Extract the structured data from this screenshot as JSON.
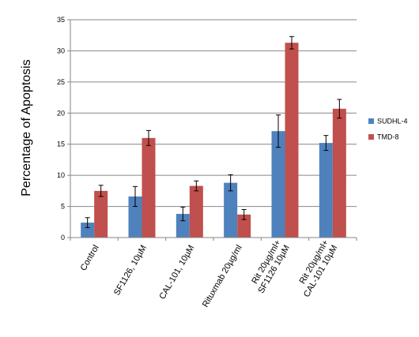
{
  "chart_data": {
    "type": "bar",
    "title": "",
    "xlabel": "",
    "ylabel": "Percentage of Apoptosis",
    "ylim": [
      0,
      35
    ],
    "yticks": [
      0,
      5,
      10,
      15,
      20,
      25,
      30,
      35
    ],
    "grid": true,
    "legend_position": "right",
    "categories": [
      [
        "Control"
      ],
      [
        "SF1126, 10µM"
      ],
      [
        "CAL-101, 10µM"
      ],
      [
        "Rituxmab 20µg/ml"
      ],
      [
        "Rit 20µg/ml+",
        "SF1126 10µM"
      ],
      [
        "Rit 20µg/ml+",
        "CAL-101 10µM"
      ]
    ],
    "series": [
      {
        "name": "SUDHL-4",
        "color": "#4f81bd",
        "values": [
          2.4,
          6.6,
          3.8,
          8.8,
          17.1,
          15.2
        ],
        "errors": [
          0.8,
          1.6,
          1.1,
          1.3,
          2.6,
          1.2
        ]
      },
      {
        "name": "TMD-8",
        "color": "#c0504d",
        "values": [
          7.5,
          16.0,
          8.3,
          3.7,
          31.3,
          20.7
        ],
        "errors": [
          0.9,
          1.2,
          0.8,
          0.8,
          1.0,
          1.5
        ]
      }
    ]
  }
}
